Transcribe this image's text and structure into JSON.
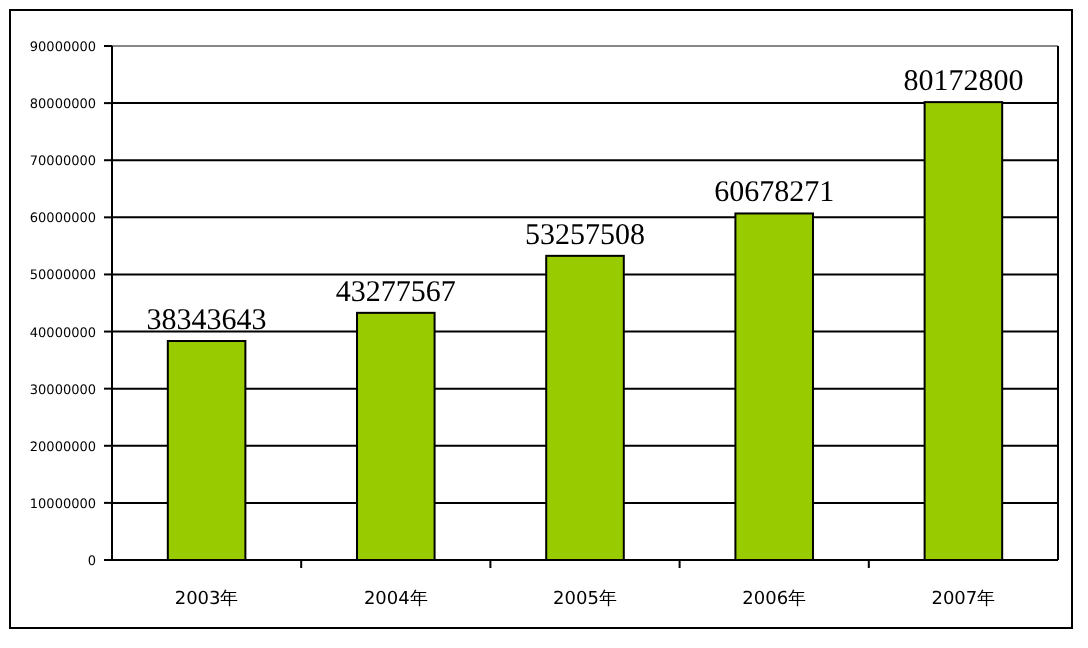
{
  "chart_data": {
    "type": "bar",
    "categories": [
      "2003年",
      "2004年",
      "2005年",
      "2006年",
      "2007年"
    ],
    "values": [
      38343643,
      43277567,
      53257508,
      60678271,
      80172800
    ],
    "color": "#99cc00",
    "ylim": [
      0,
      90000000
    ],
    "yticks": [
      0,
      10000000,
      20000000,
      30000000,
      40000000,
      50000000,
      60000000,
      70000000,
      80000000,
      90000000
    ],
    "grid": "y",
    "data_labels": true
  }
}
